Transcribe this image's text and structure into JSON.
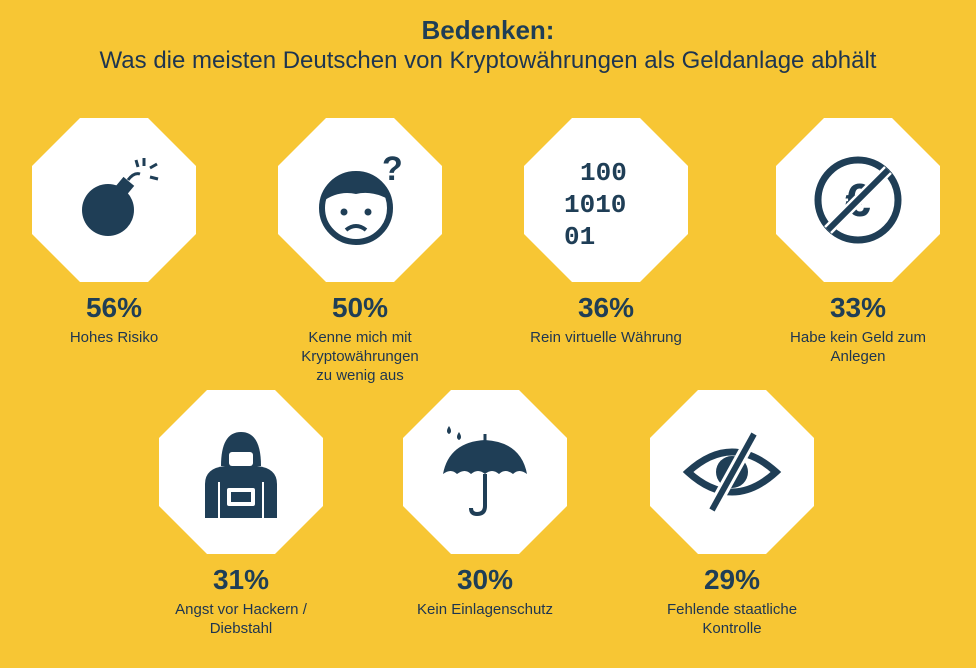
{
  "header": {
    "title": "Bedenken:",
    "subtitle": "Was die meisten Deutschen von Kryptowährungen als Geldanlage abhält"
  },
  "colors": {
    "background": "#F7C634",
    "octagon": "#FFFFFF",
    "icon": "#1F3E56",
    "text": "#1E3550"
  },
  "chart_data": {
    "type": "bar",
    "categories": [
      "Hohes Risiko",
      "Kenne mich mit Kryptowährungen zu wenig aus",
      "Rein virtuelle Währung",
      "Habe kein Geld zum Anlegen",
      "Angst vor Hackern / Diebstahl",
      "Kein Einlagenschutz",
      "Fehlende staatliche Kontrolle"
    ],
    "values": [
      56,
      50,
      36,
      33,
      31,
      30,
      29
    ],
    "unit": "%"
  },
  "items": [
    {
      "pct": "56%",
      "lines": [
        "Hohes Risiko"
      ],
      "icon": "bomb-icon"
    },
    {
      "pct": "50%",
      "lines": [
        "Kenne mich mit",
        "Kryptowährungen",
        "zu wenig aus"
      ],
      "icon": "confused-face-icon"
    },
    {
      "pct": "36%",
      "lines": [
        "Rein virtuelle Währung"
      ],
      "icon": "binary-code-icon"
    },
    {
      "pct": "33%",
      "lines": [
        "Habe kein Geld zum",
        "Anlegen"
      ],
      "icon": "no-euro-icon"
    },
    {
      "pct": "31%",
      "lines": [
        "Angst vor Hackern /",
        "Diebstahl"
      ],
      "icon": "hooded-hacker-icon"
    },
    {
      "pct": "30%",
      "lines": [
        "Kein Einlagenschutz"
      ],
      "icon": "umbrella-rain-icon"
    },
    {
      "pct": "29%",
      "lines": [
        "Fehlende staatliche",
        "Kontrolle"
      ],
      "icon": "eye-crossed-icon"
    }
  ],
  "binary": {
    "line1": "100",
    "line2": "1010",
    "line3": "01"
  },
  "question_mark": "?",
  "euro_symbol": "€"
}
